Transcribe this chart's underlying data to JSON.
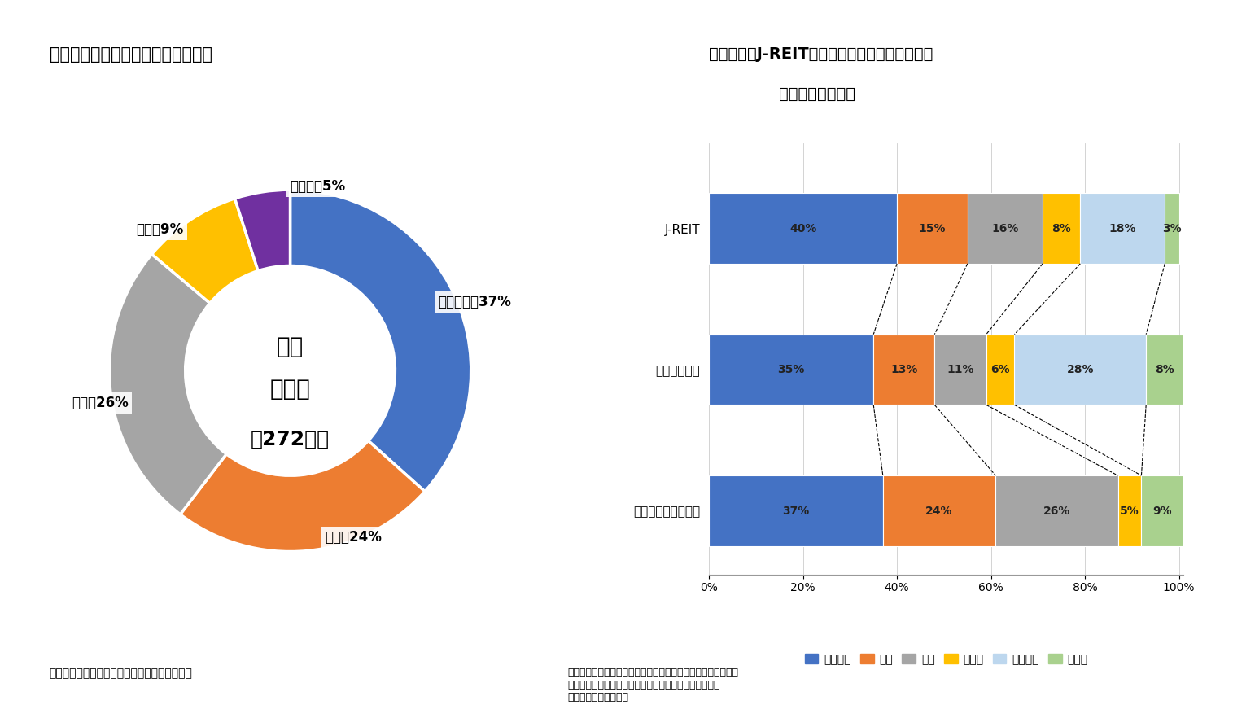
{
  "fig_title3": "図表３：「収益不動産」の市場規模",
  "fig_title4_line1": "図表４：「J-REIT」と「不動産私募ファンド」",
  "fig_title4_line2": "における投資比率",
  "donut_labels": [
    "オフィス",
    "住宅",
    "商業",
    "物流",
    "ホテル"
  ],
  "donut_values": [
    37,
    24,
    26,
    9,
    5
  ],
  "donut_colors": [
    "#4472C4",
    "#ED7D31",
    "#A5A5A5",
    "#FFC000",
    "#7030A0"
  ],
  "donut_center_text_1": "収益",
  "donut_center_text_2": "不動産",
  "donut_center_text_3": "約272兆円",
  "bar_categories": [
    "J-REIT",
    "私募ファンド",
    "市場ポートフォリオ"
  ],
  "bar_series_order": [
    "オフィス",
    "住宅",
    "商業",
    "ホテル",
    "物流施設",
    "その他"
  ],
  "bar_data_office": [
    40,
    35,
    37
  ],
  "bar_data_housing": [
    15,
    13,
    24
  ],
  "bar_data_retail": [
    16,
    11,
    26
  ],
  "bar_data_hotel": [
    8,
    6,
    5
  ],
  "bar_data_logistics": [
    18,
    28,
    0
  ],
  "bar_data_other": [
    3,
    8,
    9
  ],
  "bar_color_office": "#4472C4",
  "bar_color_housing": "#ED7D31",
  "bar_color_retail": "#A5A5A5",
  "bar_color_hotel": "#FFC000",
  "bar_color_logistics": "#BDD7EE",
  "bar_color_other": "#A9D18E",
  "source_left": "（出所）ニッセイ基礎研究所・価値総合研究所",
  "source_right": "（出所）投資信託協会公表データ、三井住友トラスト基礎研究\n所「不動産私募ファンドに関する実態調査」をもとにニ\nッセイ基礎研究所作成",
  "legend_labels": [
    "オフィス",
    "住宅",
    "商業",
    "ホテル",
    "物流施設",
    "その他"
  ],
  "bg_color": "#FFFFFF"
}
